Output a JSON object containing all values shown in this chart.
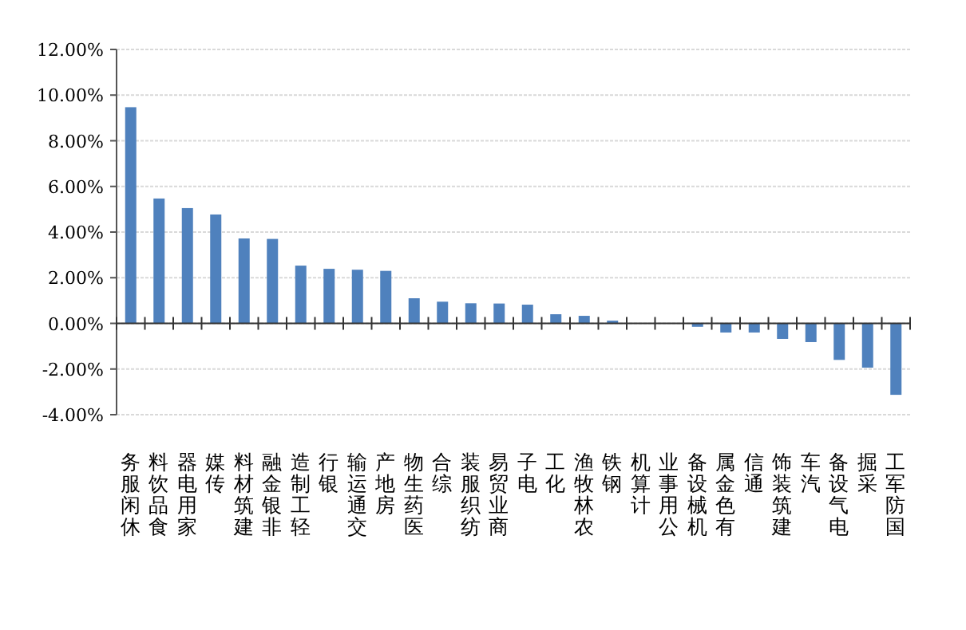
{
  "chart_data": {
    "type": "bar",
    "categories": [
      "休闲服务",
      "食品饮料",
      "家用电器",
      "传媒",
      "建筑材料",
      "非银金融",
      "轻工制造",
      "银行",
      "交通运输",
      "房地产",
      "医药生物",
      "综合",
      "纺织服装",
      "商业贸易",
      "电子",
      "化工",
      "农林牧渔",
      "钢铁",
      "计算机",
      "公用事业",
      "机械设备",
      "有色金属",
      "通信",
      "建筑装饰",
      "汽车",
      "电气设备",
      "采掘",
      "国防军工"
    ],
    "values": [
      9.47,
      5.47,
      5.05,
      4.77,
      3.72,
      3.7,
      2.53,
      2.39,
      2.35,
      2.3,
      1.1,
      0.95,
      0.88,
      0.87,
      0.82,
      0.4,
      0.33,
      0.12,
      null,
      null,
      -0.15,
      -0.4,
      -0.4,
      -0.68,
      -0.82,
      -1.6,
      -1.94,
      -3.13
    ],
    "color": "#4f81bd",
    "ylim": [
      -4,
      12
    ],
    "yticks": [
      {
        "value": -4,
        "label": "-4.00%"
      },
      {
        "value": -2,
        "label": "-2.00%"
      },
      {
        "value": 0,
        "label": "0.00%"
      },
      {
        "value": 2,
        "label": "2.00%"
      },
      {
        "value": 4,
        "label": "4.00%"
      },
      {
        "value": 6,
        "label": "6.00%"
      },
      {
        "value": 8,
        "label": "8.00%"
      },
      {
        "value": 10,
        "label": "10.00%"
      },
      {
        "value": 12,
        "label": "12.00%"
      }
    ],
    "grid": "y"
  }
}
